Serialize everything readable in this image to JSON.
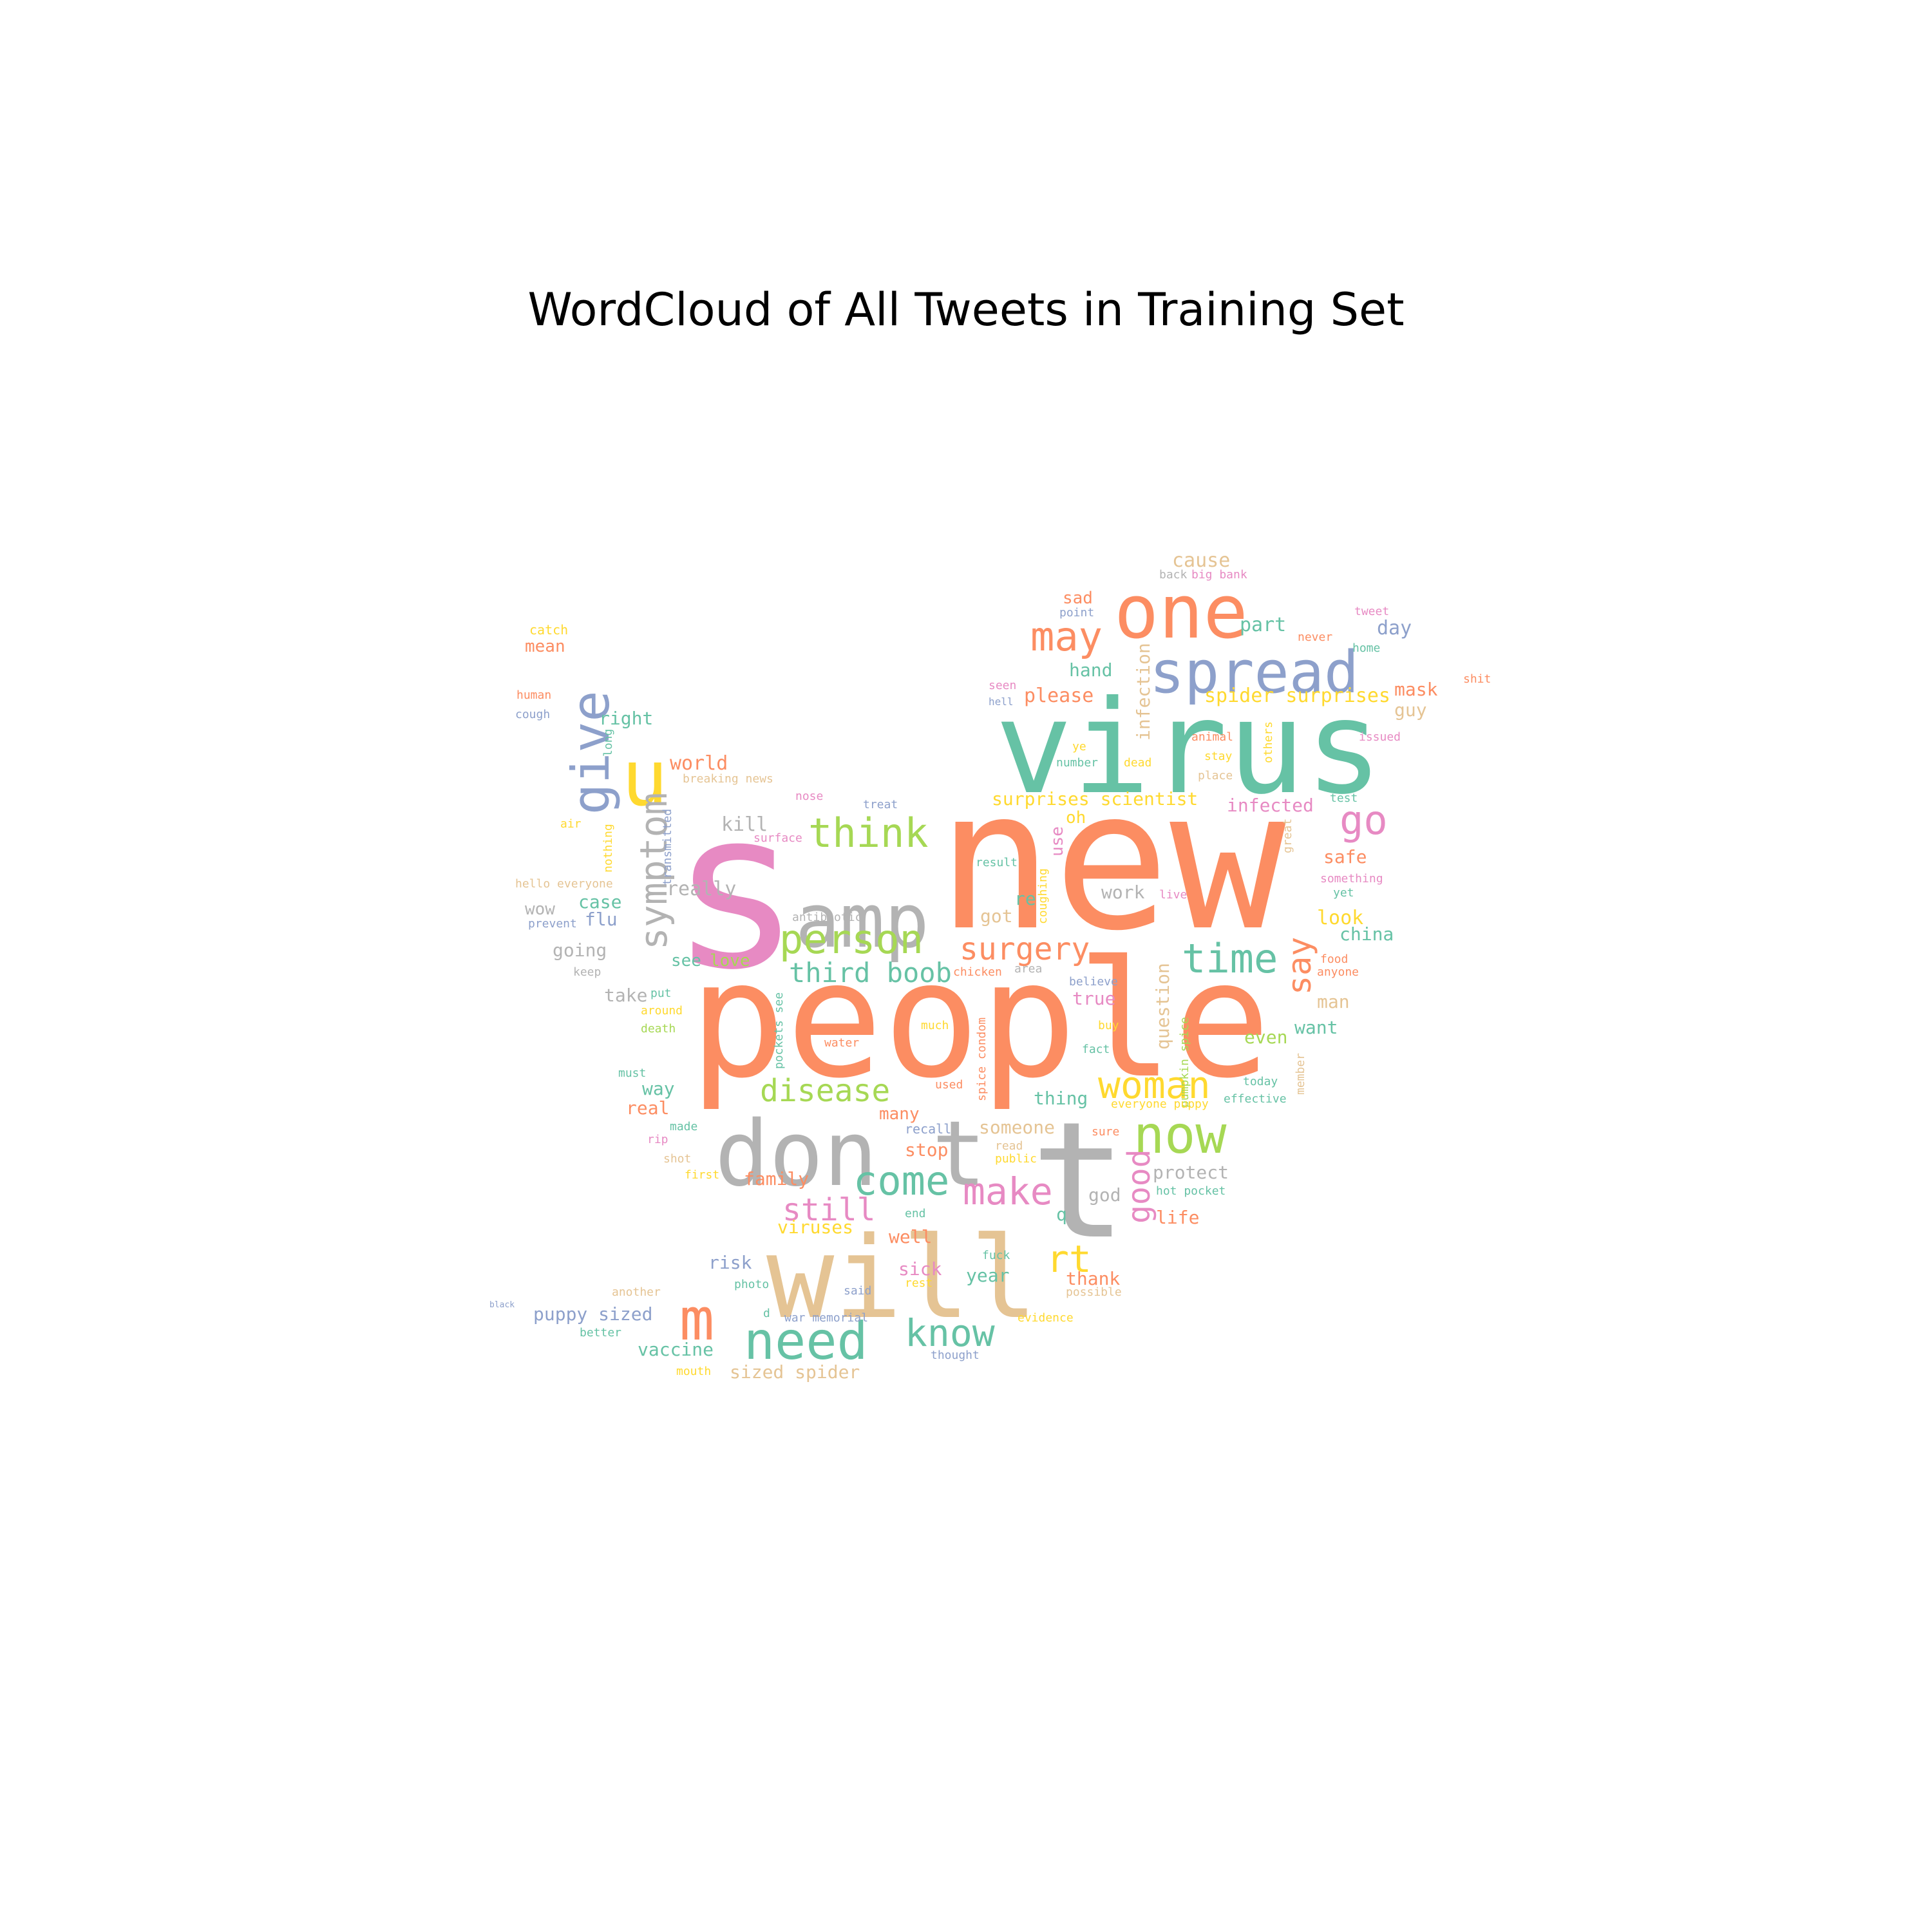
{
  "figure": {
    "title": "WordCloud of All Tweets in Training Set"
  },
  "palette": {
    "teal": "#66c2a5",
    "orange": "#fc8d62",
    "blue": "#8da0cb",
    "pink": "#e78ac3",
    "green": "#a6d854",
    "yellow": "#ffd92f",
    "tan": "#e5c494",
    "gray": "#b3b3b3"
  },
  "words": [
    {
      "text": "new",
      "color": "orange"
    },
    {
      "text": "people",
      "color": "orange"
    },
    {
      "text": "s",
      "color": "pink"
    },
    {
      "text": "virus",
      "color": "teal"
    },
    {
      "text": "will",
      "color": "tan"
    },
    {
      "text": "don t",
      "color": "gray"
    },
    {
      "text": "t",
      "color": "gray"
    },
    {
      "text": "amp",
      "color": "gray"
    },
    {
      "text": "one",
      "color": "orange"
    },
    {
      "text": "spread",
      "color": "blue"
    },
    {
      "text": "u",
      "color": "yellow"
    },
    {
      "text": "give",
      "color": "blue"
    },
    {
      "text": "symptom",
      "color": "gray"
    },
    {
      "text": "may",
      "color": "orange"
    },
    {
      "text": "think",
      "color": "green"
    },
    {
      "text": "person",
      "color": "green"
    },
    {
      "text": "time",
      "color": "teal"
    },
    {
      "text": "surgery",
      "color": "orange"
    },
    {
      "text": "third boob",
      "color": "teal"
    },
    {
      "text": "go",
      "color": "pink"
    },
    {
      "text": "say",
      "color": "orange"
    },
    {
      "text": "woman",
      "color": "yellow"
    },
    {
      "text": "now",
      "color": "green"
    },
    {
      "text": "disease",
      "color": "green"
    },
    {
      "text": "come",
      "color": "teal"
    },
    {
      "text": "make",
      "color": "pink"
    },
    {
      "text": "good",
      "color": "pink"
    },
    {
      "text": "need",
      "color": "teal"
    },
    {
      "text": "know",
      "color": "teal"
    },
    {
      "text": "m",
      "color": "orange"
    },
    {
      "text": "rt",
      "color": "yellow"
    },
    {
      "text": "still",
      "color": "pink"
    },
    {
      "text": "cause",
      "color": "tan"
    },
    {
      "text": "sad",
      "color": "orange"
    },
    {
      "text": "point",
      "color": "blue"
    },
    {
      "text": "back",
      "color": "gray"
    },
    {
      "text": "big bank",
      "color": "pink"
    },
    {
      "text": "tweet",
      "color": "pink"
    },
    {
      "text": "part",
      "color": "teal"
    },
    {
      "text": "day",
      "color": "blue"
    },
    {
      "text": "home",
      "color": "teal"
    },
    {
      "text": "hand",
      "color": "teal"
    },
    {
      "text": "please",
      "color": "orange"
    },
    {
      "text": "infection",
      "color": "tan"
    },
    {
      "text": "spider surprises",
      "color": "yellow"
    },
    {
      "text": "mask",
      "color": "orange"
    },
    {
      "text": "guy",
      "color": "tan"
    },
    {
      "text": "shit",
      "color": "orange"
    },
    {
      "text": "catch",
      "color": "yellow"
    },
    {
      "text": "mean",
      "color": "orange"
    },
    {
      "text": "human",
      "color": "orange"
    },
    {
      "text": "cough",
      "color": "blue"
    },
    {
      "text": "right",
      "color": "teal"
    },
    {
      "text": "world",
      "color": "orange"
    },
    {
      "text": "breaking news",
      "color": "tan"
    },
    {
      "text": "animal",
      "color": "orange"
    },
    {
      "text": "stay",
      "color": "yellow"
    },
    {
      "text": "issued",
      "color": "pink"
    },
    {
      "text": "number",
      "color": "teal"
    },
    {
      "text": "dead",
      "color": "yellow"
    },
    {
      "text": "place",
      "color": "tan"
    },
    {
      "text": "surprises scientist",
      "color": "yellow"
    },
    {
      "text": "infected",
      "color": "pink"
    },
    {
      "text": "test",
      "color": "teal"
    },
    {
      "text": "kill",
      "color": "gray"
    },
    {
      "text": "treat",
      "color": "blue"
    },
    {
      "text": "nose",
      "color": "pink"
    },
    {
      "text": "air",
      "color": "yellow"
    },
    {
      "text": "safe",
      "color": "orange"
    },
    {
      "text": "something",
      "color": "pink"
    },
    {
      "text": "yet",
      "color": "teal"
    },
    {
      "text": "really",
      "color": "gray"
    },
    {
      "text": "work",
      "color": "gray"
    },
    {
      "text": "live",
      "color": "pink"
    },
    {
      "text": "re",
      "color": "teal"
    },
    {
      "text": "got",
      "color": "tan"
    },
    {
      "text": "look",
      "color": "yellow"
    },
    {
      "text": "china",
      "color": "teal"
    },
    {
      "text": "hello everyone",
      "color": "tan"
    },
    {
      "text": "wow",
      "color": "gray"
    },
    {
      "text": "case",
      "color": "teal"
    },
    {
      "text": "flu",
      "color": "blue"
    },
    {
      "text": "prevent",
      "color": "blue"
    },
    {
      "text": "antibiotic",
      "color": "gray"
    },
    {
      "text": "result",
      "color": "teal"
    },
    {
      "text": "going",
      "color": "gray"
    },
    {
      "text": "see",
      "color": "teal"
    },
    {
      "text": "love",
      "color": "green"
    },
    {
      "text": "take",
      "color": "gray"
    },
    {
      "text": "keep",
      "color": "gray"
    },
    {
      "text": "put",
      "color": "teal"
    },
    {
      "text": "around",
      "color": "yellow"
    },
    {
      "text": "death",
      "color": "green"
    },
    {
      "text": "question",
      "color": "tan"
    },
    {
      "text": "true",
      "color": "pink"
    },
    {
      "text": "believe",
      "color": "blue"
    },
    {
      "text": "buy",
      "color": "yellow"
    },
    {
      "text": "fact",
      "color": "teal"
    },
    {
      "text": "man",
      "color": "tan"
    },
    {
      "text": "want",
      "color": "teal"
    },
    {
      "text": "even",
      "color": "green"
    },
    {
      "text": "food",
      "color": "orange"
    },
    {
      "text": "anyone",
      "color": "orange"
    },
    {
      "text": "pumpkin spice",
      "color": "green"
    },
    {
      "text": "spice condom",
      "color": "orange"
    },
    {
      "text": "pockets see",
      "color": "teal"
    },
    {
      "text": "much",
      "color": "yellow"
    },
    {
      "text": "water",
      "color": "orange"
    },
    {
      "text": "chicken",
      "color": "orange"
    },
    {
      "text": "area",
      "color": "gray"
    },
    {
      "text": "must",
      "color": "teal"
    },
    {
      "text": "way",
      "color": "teal"
    },
    {
      "text": "real",
      "color": "orange"
    },
    {
      "text": "used",
      "color": "orange"
    },
    {
      "text": "thing",
      "color": "teal"
    },
    {
      "text": "everyone puppy",
      "color": "yellow"
    },
    {
      "text": "effective",
      "color": "teal"
    },
    {
      "text": "today",
      "color": "teal"
    },
    {
      "text": "many",
      "color": "orange"
    },
    {
      "text": "recall",
      "color": "blue"
    },
    {
      "text": "someone",
      "color": "tan"
    },
    {
      "text": "sure",
      "color": "orange"
    },
    {
      "text": "read",
      "color": "tan"
    },
    {
      "text": "public",
      "color": "yellow"
    },
    {
      "text": "stop",
      "color": "orange"
    },
    {
      "text": "protect",
      "color": "gray"
    },
    {
      "text": "god",
      "color": "gray"
    },
    {
      "text": "hot pocket",
      "color": "teal"
    },
    {
      "text": "made",
      "color": "teal"
    },
    {
      "text": "rip",
      "color": "pink"
    },
    {
      "text": "shot",
      "color": "tan"
    },
    {
      "text": "first",
      "color": "yellow"
    },
    {
      "text": "family",
      "color": "orange"
    },
    {
      "text": "viruses",
      "color": "yellow"
    },
    {
      "text": "end",
      "color": "teal"
    },
    {
      "text": "q",
      "color": "teal"
    },
    {
      "text": "life",
      "color": "orange"
    },
    {
      "text": "well",
      "color": "orange"
    },
    {
      "text": "risk",
      "color": "blue"
    },
    {
      "text": "sick",
      "color": "pink"
    },
    {
      "text": "rest",
      "color": "yellow"
    },
    {
      "text": "fuck",
      "color": "teal"
    },
    {
      "text": "year",
      "color": "teal"
    },
    {
      "text": "thank",
      "color": "orange"
    },
    {
      "text": "possible",
      "color": "tan"
    },
    {
      "text": "another",
      "color": "tan"
    },
    {
      "text": "photo",
      "color": "teal"
    },
    {
      "text": "said",
      "color": "blue"
    },
    {
      "text": "puppy sized",
      "color": "blue"
    },
    {
      "text": "better",
      "color": "teal"
    },
    {
      "text": "d",
      "color": "teal"
    },
    {
      "text": "war memorial",
      "color": "blue"
    },
    {
      "text": "evidence",
      "color": "yellow"
    },
    {
      "text": "vaccine",
      "color": "teal"
    },
    {
      "text": "mouth",
      "color": "yellow"
    },
    {
      "text": "sized spider",
      "color": "tan"
    },
    {
      "text": "thought",
      "color": "blue"
    },
    {
      "text": "black",
      "color": "blue"
    },
    {
      "text": "oh",
      "color": "yellow"
    },
    {
      "text": "use",
      "color": "pink"
    },
    {
      "text": "nothing",
      "color": "yellow"
    },
    {
      "text": "transmitted",
      "color": "blue"
    },
    {
      "text": "coughing",
      "color": "yellow"
    },
    {
      "text": "others",
      "color": "yellow"
    },
    {
      "text": "great",
      "color": "tan"
    },
    {
      "text": "member",
      "color": "tan"
    },
    {
      "text": "never",
      "color": "orange"
    },
    {
      "text": "seen",
      "color": "pink"
    },
    {
      "text": "hell",
      "color": "blue"
    },
    {
      "text": "ye",
      "color": "yellow"
    },
    {
      "text": "long",
      "color": "teal"
    },
    {
      "text": "surface",
      "color": "pink"
    }
  ]
}
